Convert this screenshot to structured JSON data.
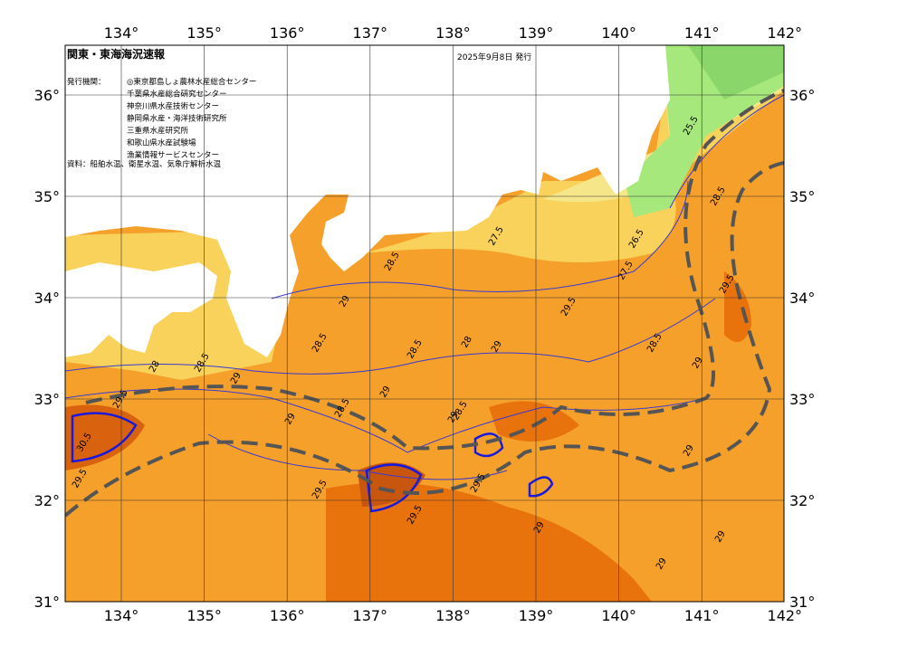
{
  "header": {
    "title": "関東・東海海況速報",
    "date": "2025年9月8日 発行"
  },
  "issuers": {
    "label": "発行機関：",
    "names": [
      "◎東京都島しょ農林水産総合センター",
      "千葉県水産総合研究センター",
      "神奈川県水産技術センター",
      "静岡県水産・海洋技術研究所",
      "三重県水産研究所",
      "和歌山県水産試験場",
      "漁業情報サービスセンター"
    ]
  },
  "source": "資料：船舶水温、衛星水温、気象庁解析水温",
  "lon_labels": [
    "134°",
    "135°",
    "136°",
    "137°",
    "138°",
    "139°",
    "140°",
    "141°",
    "142°"
  ],
  "lat_labels": [
    "31°",
    "32°",
    "33°",
    "34°",
    "35°",
    "36°"
  ],
  "contour_labels": [
    "29",
    "28.5",
    "28",
    "28.5",
    "29",
    "29.5",
    "30.5",
    "29.5",
    "28.5",
    "29",
    "29.5",
    "28.5",
    "29",
    "29.5",
    "29",
    "28.5",
    "29",
    "28",
    "29.5",
    "28.5",
    "29",
    "29.5",
    "27.5",
    "26.5",
    "27.5",
    "28.5",
    "29.5",
    "28.5",
    "29",
    "25.5",
    "29",
    "29",
    "29"
  ]
}
